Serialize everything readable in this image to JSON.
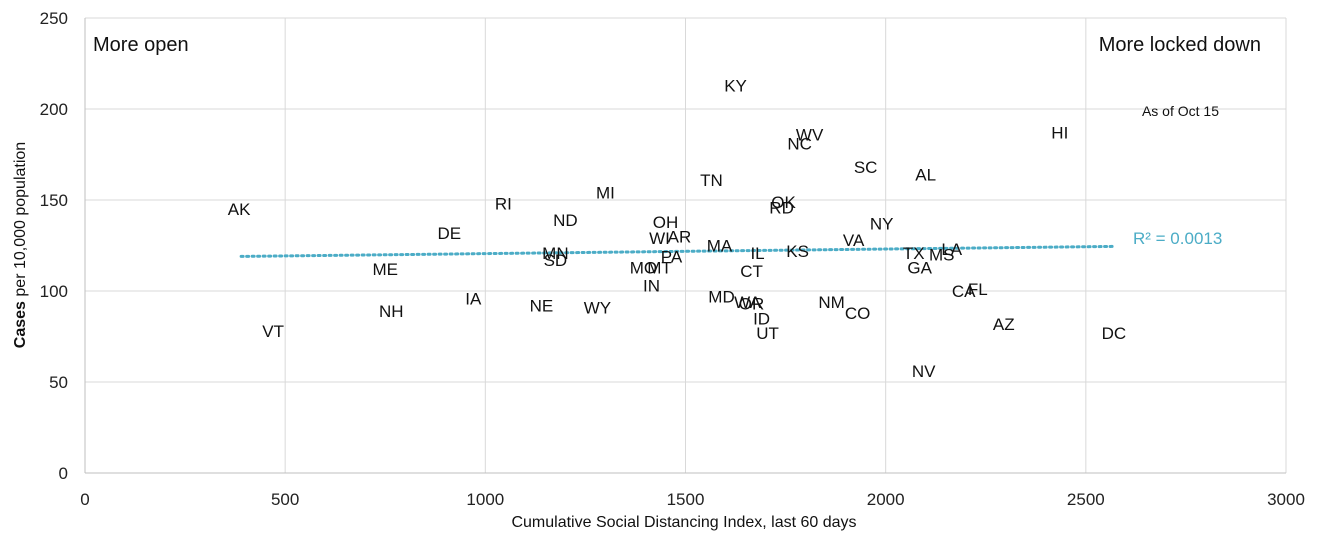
{
  "chart_data": {
    "type": "scatter",
    "xlabel": "Cumulative Social Distancing Index, last 60 days",
    "ylabel_bold": "Cases",
    "ylabel_rest": " per 10,000 population",
    "xlim": [
      0,
      3000
    ],
    "ylim": [
      0,
      250
    ],
    "x_ticks": [
      "0",
      "500",
      "1000",
      "1500",
      "2000",
      "2500",
      "3000"
    ],
    "y_ticks": [
      "0",
      "50",
      "100",
      "150",
      "200",
      "250"
    ],
    "grid": true,
    "annotations": {
      "left": "More open",
      "right": "More locked down",
      "date_note": "As of Oct 15"
    },
    "trendline": {
      "style": "dotted",
      "color": "#4bacc6",
      "r2_label": "R² = 0.0013",
      "x": [
        390,
        2570
      ],
      "y": [
        119,
        124.5
      ]
    },
    "points": [
      {
        "label": "AK",
        "x": 385,
        "y": 145
      },
      {
        "label": "VT",
        "x": 470,
        "y": 78
      },
      {
        "label": "ME",
        "x": 750,
        "y": 112
      },
      {
        "label": "NH",
        "x": 765,
        "y": 89
      },
      {
        "label": "DE",
        "x": 910,
        "y": 132
      },
      {
        "label": "IA",
        "x": 970,
        "y": 96
      },
      {
        "label": "RI",
        "x": 1045,
        "y": 148
      },
      {
        "label": "NE",
        "x": 1140,
        "y": 92
      },
      {
        "label": "ND",
        "x": 1200,
        "y": 139
      },
      {
        "label": "MN",
        "x": 1175,
        "y": 121
      },
      {
        "label": "SD",
        "x": 1175,
        "y": 117
      },
      {
        "label": "WY",
        "x": 1280,
        "y": 91
      },
      {
        "label": "MI",
        "x": 1300,
        "y": 154
      },
      {
        "label": "MO",
        "x": 1395,
        "y": 113
      },
      {
        "label": "MT",
        "x": 1435,
        "y": 113
      },
      {
        "label": "IN",
        "x": 1415,
        "y": 103
      },
      {
        "label": "OH",
        "x": 1450,
        "y": 138
      },
      {
        "label": "WI",
        "x": 1435,
        "y": 129
      },
      {
        "label": "AR",
        "x": 1485,
        "y": 130
      },
      {
        "label": "PA",
        "x": 1465,
        "y": 119
      },
      {
        "label": "TN",
        "x": 1565,
        "y": 161
      },
      {
        "label": "KY",
        "x": 1625,
        "y": 213
      },
      {
        "label": "MA",
        "x": 1585,
        "y": 125
      },
      {
        "label": "MD",
        "x": 1590,
        "y": 97
      },
      {
        "label": "WA",
        "x": 1655,
        "y": 94
      },
      {
        "label": "OR",
        "x": 1665,
        "y": 93
      },
      {
        "label": "ID",
        "x": 1690,
        "y": 85
      },
      {
        "label": "UT",
        "x": 1705,
        "y": 77
      },
      {
        "label": "IL",
        "x": 1680,
        "y": 121
      },
      {
        "label": "CT",
        "x": 1665,
        "y": 111
      },
      {
        "label": "OK",
        "x": 1745,
        "y": 149
      },
      {
        "label": "RD",
        "x": 1740,
        "y": 146
      },
      {
        "label": "NC",
        "x": 1785,
        "y": 181
      },
      {
        "label": "WV",
        "x": 1810,
        "y": 186
      },
      {
        "label": "KS",
        "x": 1780,
        "y": 122
      },
      {
        "label": "SC",
        "x": 1950,
        "y": 168
      },
      {
        "label": "VA",
        "x": 1920,
        "y": 128
      },
      {
        "label": "NY",
        "x": 1990,
        "y": 137
      },
      {
        "label": "NM",
        "x": 1865,
        "y": 94
      },
      {
        "label": "CO",
        "x": 1930,
        "y": 88
      },
      {
        "label": "AL",
        "x": 2100,
        "y": 164
      },
      {
        "label": "TX",
        "x": 2070,
        "y": 121
      },
      {
        "label": "MS",
        "x": 2140,
        "y": 120
      },
      {
        "label": "LA",
        "x": 2165,
        "y": 123
      },
      {
        "label": "GA",
        "x": 2085,
        "y": 113
      },
      {
        "label": "CA",
        "x": 2195,
        "y": 100
      },
      {
        "label": "FL",
        "x": 2230,
        "y": 101
      },
      {
        "label": "AZ",
        "x": 2295,
        "y": 82
      },
      {
        "label": "NV",
        "x": 2095,
        "y": 56
      },
      {
        "label": "HI",
        "x": 2435,
        "y": 187
      },
      {
        "label": "DC",
        "x": 2570,
        "y": 77
      }
    ]
  }
}
